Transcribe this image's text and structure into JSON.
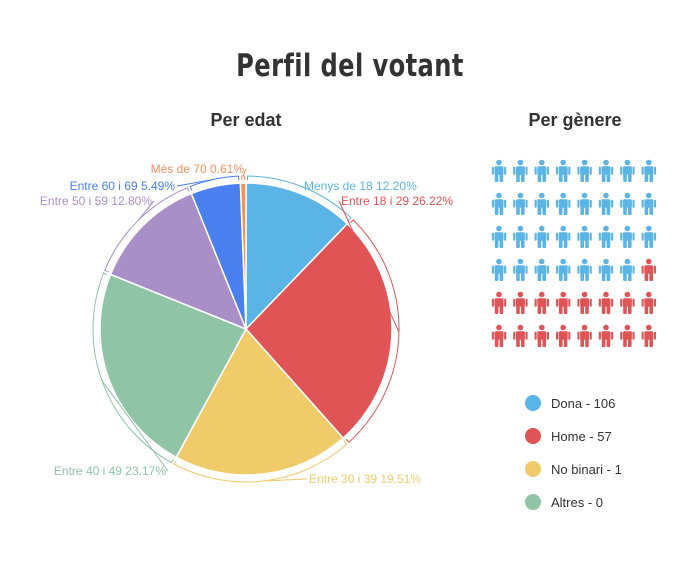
{
  "title": "Perfil del votant",
  "chart_data": [
    {
      "type": "pie",
      "title": "Per edat",
      "slices": [
        {
          "label": "Menys de 18",
          "value": 12.2,
          "text": "Menys de 18 12.20%",
          "color": "#5ab4e5"
        },
        {
          "label": "Entre 18 i 29",
          "value": 26.22,
          "text": "Entre 18 i 29 26.22%",
          "color": "#e05456"
        },
        {
          "label": "Entre 30 i 39",
          "value": 19.51,
          "text": "Entre 30 i 39 19.51%",
          "color": "#f0cb69"
        },
        {
          "label": "Entre 40 i 49",
          "value": 23.17,
          "text": "Entre 40 i 49 23.17%",
          "color": "#8fc4a6"
        },
        {
          "label": "Entre 50 i 59",
          "value": 12.8,
          "text": "Entre 50 i 59 12.80%",
          "color": "#a98fc8"
        },
        {
          "label": "Entre 60 i 69",
          "value": 5.49,
          "text": "Entre 60 i 69 5.49%",
          "color": "#4a7ff0"
        },
        {
          "label": "Més de 70",
          "value": 0.61,
          "text": "Més de 70 0.61%",
          "color": "#f58f5b"
        }
      ]
    },
    {
      "type": "pictograph",
      "title": "Per gènere",
      "total_icons": 48,
      "icon": "person-icon",
      "categories": [
        {
          "label": "Dona",
          "value": 106,
          "text": "Dona - 106",
          "color": "#5ab4e5",
          "icons": 31
        },
        {
          "label": "Home",
          "value": 57,
          "text": "Home - 57",
          "color": "#e05456",
          "icons": 17
        },
        {
          "label": "No binari",
          "value": 1,
          "text": "No binari - 1",
          "color": "#f0cb69",
          "icons": 0
        },
        {
          "label": "Altres",
          "value": 0,
          "text": "Altres - 0",
          "color": "#8fc4a6",
          "icons": 0
        }
      ]
    }
  ]
}
